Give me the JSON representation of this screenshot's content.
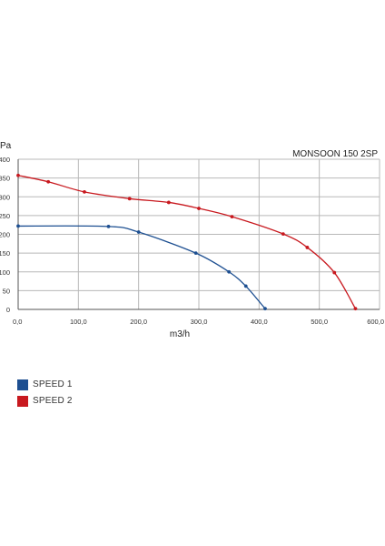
{
  "colors": {
    "speed1": "#1d4f91",
    "speed2": "#c8191f",
    "grid": "#b8b8b8",
    "axis": "#555555"
  },
  "chart_data": {
    "type": "line",
    "title": "MONSOON 150 2SP",
    "xlabel": "m3/h",
    "ylabel": "Pa",
    "xlim": [
      0,
      600
    ],
    "ylim": [
      0,
      400
    ],
    "x_ticks": [
      "0,0",
      "100,0",
      "200,0",
      "300,0",
      "400,0",
      "500,0",
      "600,0"
    ],
    "y_ticks": [
      "0",
      "50",
      "100",
      "150",
      "200",
      "250",
      "300",
      "350",
      "400"
    ],
    "grid": true,
    "legend_position": "bottom-left",
    "series": [
      {
        "name": "SPEED 1",
        "color": "#1d4f91",
        "points": [
          [
            0,
            222
          ],
          [
            150,
            221
          ],
          [
            200,
            206
          ],
          [
            295,
            150
          ],
          [
            350,
            100
          ],
          [
            378,
            62
          ],
          [
            410,
            2
          ]
        ]
      },
      {
        "name": "SPEED 2",
        "color": "#c8191f",
        "points": [
          [
            0,
            357
          ],
          [
            50,
            340
          ],
          [
            110,
            313
          ],
          [
            185,
            295
          ],
          [
            250,
            285
          ],
          [
            300,
            269
          ],
          [
            355,
            247
          ],
          [
            440,
            201
          ],
          [
            480,
            165
          ],
          [
            525,
            98
          ],
          [
            560,
            2
          ]
        ]
      }
    ]
  }
}
